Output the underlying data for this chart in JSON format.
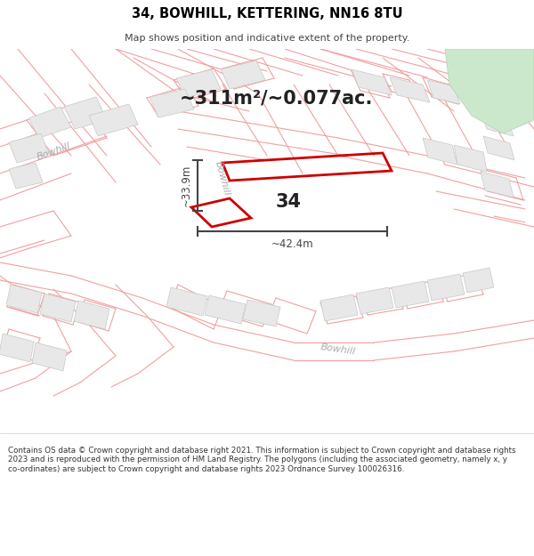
{
  "title_line1": "34, BOWHILL, KETTERING, NN16 8TU",
  "title_line2": "Map shows position and indicative extent of the property.",
  "area_text": "~311m²/~0.077ac.",
  "label_34": "34",
  "dim_vertical": "~33.9m",
  "dim_horizontal": "~42.4m",
  "road_label_ul": "Bowhill",
  "road_label_mid": "Bowhill",
  "road_label_bot": "Bowhill",
  "footer_text": "Contains OS data © Crown copyright and database right 2021. This information is subject to Crown copyright and database rights 2023 and is reproduced with the permission of HM Land Registry. The polygons (including the associated geometry, namely x, y co-ordinates) are subject to Crown copyright and database rights 2023 Ordnance Survey 100026316.",
  "bg_color": "#ffffff",
  "map_bg": "#ffffff",
  "building_fill": "#e8e8e8",
  "building_edge": "#c8c8c8",
  "road_line_color": "#f0a0a0",
  "plot_color": "#cc0000",
  "green_fill": "#cce8cc",
  "green_edge": "#b0d0b0",
  "dim_color": "#444444",
  "road_label_color": "#aaaaaa",
  "title_color": "#000000",
  "footer_color": "#333333"
}
